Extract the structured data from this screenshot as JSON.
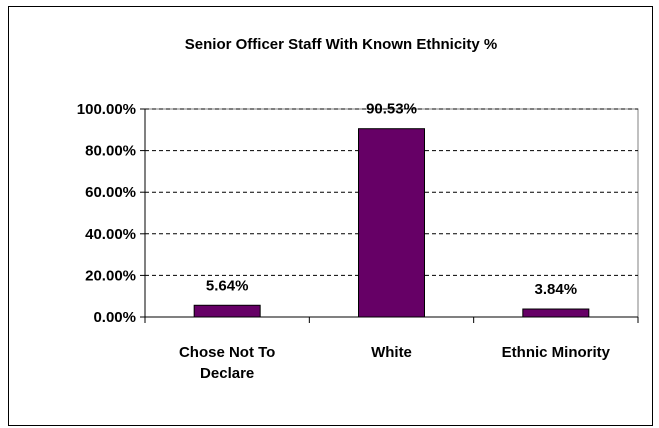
{
  "chart_data": {
    "type": "bar",
    "title": "Senior Officer Staff With Known Ethnicity %",
    "categories": [
      [
        "Chose Not To",
        "Declare"
      ],
      [
        "White"
      ],
      [
        "Ethnic Minority"
      ]
    ],
    "values": [
      5.64,
      90.53,
      3.84
    ],
    "data_labels": [
      "5.64%",
      "90.53%",
      "3.84%"
    ],
    "ylim": [
      0,
      100
    ],
    "yticks": [
      0,
      20,
      40,
      60,
      80,
      100
    ],
    "ytick_labels": [
      "0.00%",
      "20.00%",
      "40.00%",
      "60.00%",
      "80.00%",
      "100.00%"
    ],
    "xlabel": "",
    "ylabel": "",
    "grid": "dashed horizontal",
    "legend": "none",
    "bar_color": "#660066"
  }
}
